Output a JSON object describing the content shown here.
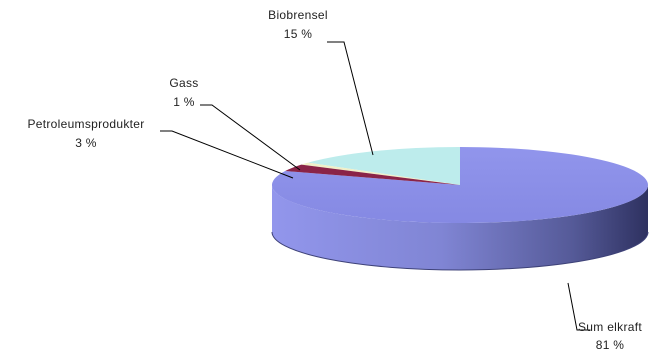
{
  "chart_data": {
    "type": "pie",
    "title": "",
    "slices": [
      {
        "name": "Sum elkraft",
        "value": 81,
        "label": "81 %",
        "color": "#8B8FE8"
      },
      {
        "name": "Biobrensel",
        "value": 15,
        "label": "15 %",
        "color": "#BDECEC"
      },
      {
        "name": "Gass",
        "value": 1,
        "label": "1 %",
        "color": "#F0EFC8"
      },
      {
        "name": "Petroleumsprodukter",
        "value": 3,
        "label": "3 %",
        "color": "#8A2448"
      }
    ],
    "style": "3d",
    "legend": "none"
  }
}
